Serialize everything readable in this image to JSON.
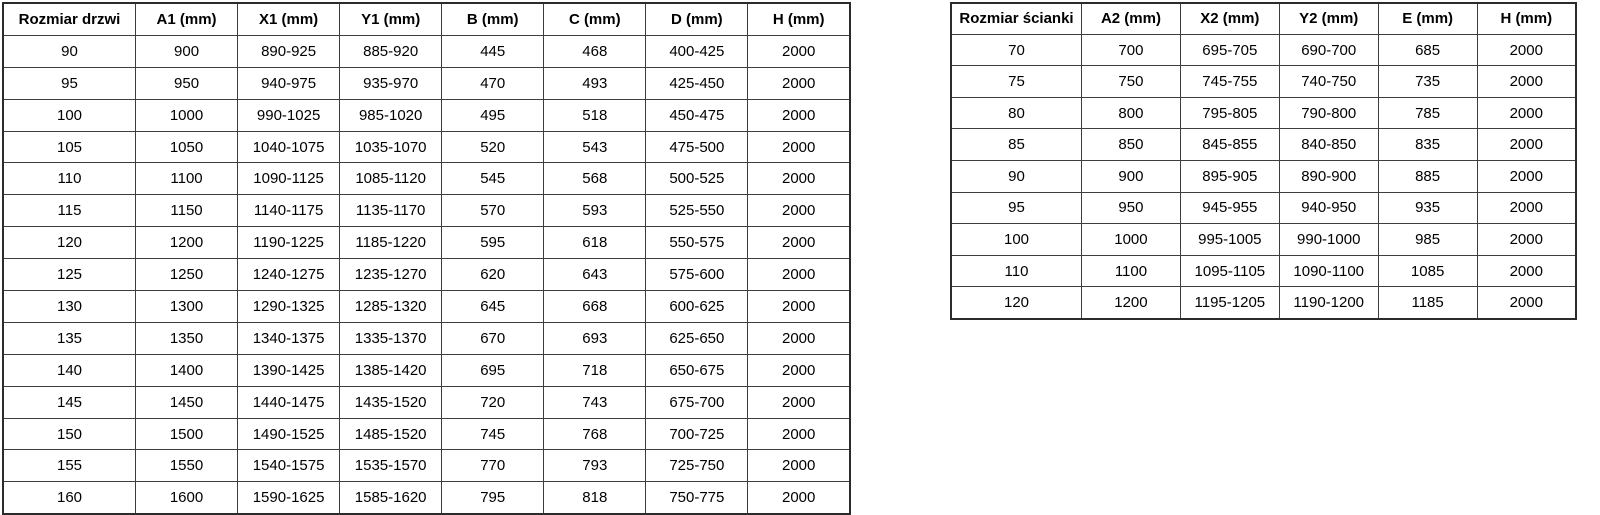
{
  "door_table": {
    "name": "door-size-table",
    "headers": [
      "Rozmiar drzwi",
      "A1 (mm)",
      "X1 (mm)",
      "Y1 (mm)",
      "B (mm)",
      "C (mm)",
      "D (mm)",
      "H (mm)"
    ],
    "rows": [
      [
        "90",
        "900",
        "890-925",
        "885-920",
        "445",
        "468",
        "400-425",
        "2000"
      ],
      [
        "95",
        "950",
        "940-975",
        "935-970",
        "470",
        "493",
        "425-450",
        "2000"
      ],
      [
        "100",
        "1000",
        "990-1025",
        "985-1020",
        "495",
        "518",
        "450-475",
        "2000"
      ],
      [
        "105",
        "1050",
        "1040-1075",
        "1035-1070",
        "520",
        "543",
        "475-500",
        "2000"
      ],
      [
        "110",
        "1100",
        "1090-1125",
        "1085-1120",
        "545",
        "568",
        "500-525",
        "2000"
      ],
      [
        "115",
        "1150",
        "1140-1175",
        "1135-1170",
        "570",
        "593",
        "525-550",
        "2000"
      ],
      [
        "120",
        "1200",
        "1190-1225",
        "1185-1220",
        "595",
        "618",
        "550-575",
        "2000"
      ],
      [
        "125",
        "1250",
        "1240-1275",
        "1235-1270",
        "620",
        "643",
        "575-600",
        "2000"
      ],
      [
        "130",
        "1300",
        "1290-1325",
        "1285-1320",
        "645",
        "668",
        "600-625",
        "2000"
      ],
      [
        "135",
        "1350",
        "1340-1375",
        "1335-1370",
        "670",
        "693",
        "625-650",
        "2000"
      ],
      [
        "140",
        "1400",
        "1390-1425",
        "1385-1420",
        "695",
        "718",
        "650-675",
        "2000"
      ],
      [
        "145",
        "1450",
        "1440-1475",
        "1435-1520",
        "720",
        "743",
        "675-700",
        "2000"
      ],
      [
        "150",
        "1500",
        "1490-1525",
        "1485-1520",
        "745",
        "768",
        "700-725",
        "2000"
      ],
      [
        "155",
        "1550",
        "1540-1575",
        "1535-1570",
        "770",
        "793",
        "725-750",
        "2000"
      ],
      [
        "160",
        "1600",
        "1590-1625",
        "1585-1620",
        "795",
        "818",
        "750-775",
        "2000"
      ]
    ]
  },
  "wall_table": {
    "name": "wall-size-table",
    "headers": [
      "Rozmiar ścianki",
      "A2 (mm)",
      "X2 (mm)",
      "Y2 (mm)",
      "E (mm)",
      "H (mm)"
    ],
    "rows": [
      [
        "70",
        "700",
        "695-705",
        "690-700",
        "685",
        "2000"
      ],
      [
        "75",
        "750",
        "745-755",
        "740-750",
        "735",
        "2000"
      ],
      [
        "80",
        "800",
        "795-805",
        "790-800",
        "785",
        "2000"
      ],
      [
        "85",
        "850",
        "845-855",
        "840-850",
        "835",
        "2000"
      ],
      [
        "90",
        "900",
        "895-905",
        "890-900",
        "885",
        "2000"
      ],
      [
        "95",
        "950",
        "945-955",
        "940-950",
        "935",
        "2000"
      ],
      [
        "100",
        "1000",
        "995-1005",
        "990-1000",
        "985",
        "2000"
      ],
      [
        "110",
        "1100",
        "1095-1105",
        "1090-1100",
        "1085",
        "2000"
      ],
      [
        "120",
        "1200",
        "1195-1205",
        "1190-1200",
        "1185",
        "2000"
      ]
    ]
  },
  "colors": {
    "border_inner": "#3d3d3d",
    "border_outer": "#2b2b2b",
    "text": "#000000",
    "background": "#ffffff"
  }
}
